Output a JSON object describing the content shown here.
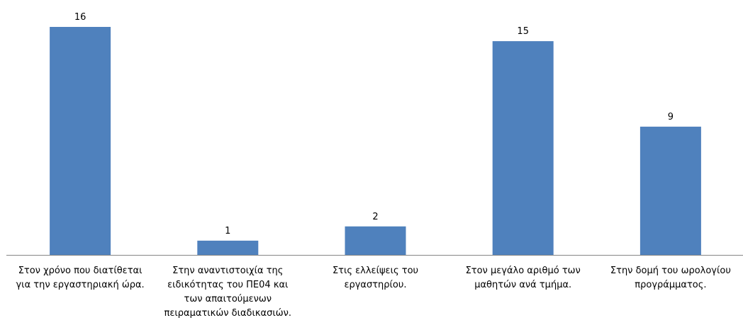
{
  "chart_data": {
    "type": "bar",
    "categories": [
      "Στον χρόνο που διατίθεται\nγια την εργαστηριακή ώρα.",
      "Στην αναντιστοιχία της\nειδικότητας του ΠΕ04 και\nτων απαιτούμενων\nπειραματικών  διαδικασιών.",
      "Στις ελλείψεις του\nεργαστηρίου.",
      "Στον μεγάλο αριθμό των\nμαθητών ανά τμήμα.",
      "Στην  δομή του ωρολογίου\nπρογράμματος."
    ],
    "values": [
      16,
      1,
      2,
      15,
      9
    ],
    "color": "#4f81bd",
    "ylim": [
      0,
      16
    ]
  }
}
